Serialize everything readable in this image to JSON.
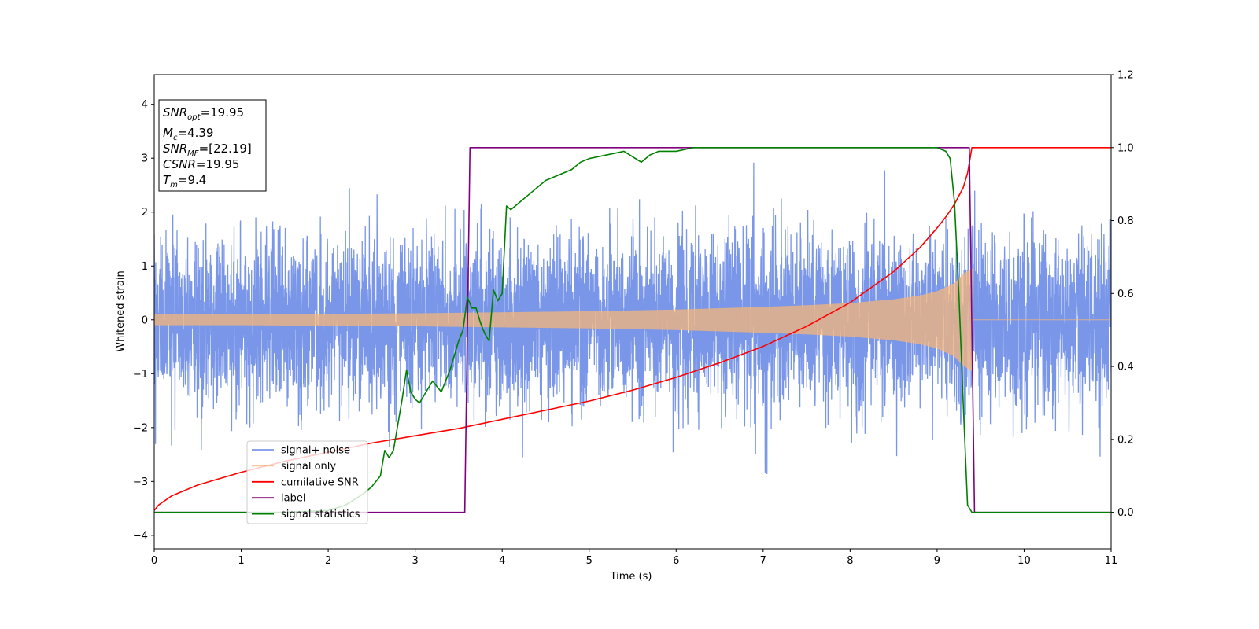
{
  "chart_data": {
    "type": "line",
    "xlabel": "Time (s)",
    "ylabel": "Whitened strain",
    "xlim": [
      0,
      11
    ],
    "ylim_left": [
      -4.25,
      4.55
    ],
    "ylim_right": [
      -0.1,
      1.2
    ],
    "x_ticks": [
      0,
      1,
      2,
      3,
      4,
      5,
      6,
      7,
      8,
      9,
      10,
      11
    ],
    "y_ticks_left": [
      -4,
      -3,
      -2,
      -1,
      0,
      1,
      2,
      3,
      4
    ],
    "y_ticks_right": [
      0.0,
      0.2,
      0.4,
      0.6,
      0.8,
      1.0,
      1.2
    ],
    "grid": false,
    "legend_position": "lower-left",
    "annotations": {
      "snr_opt": {
        "name": "SNR",
        "sub": "opt",
        "value": "=19.95"
      },
      "mc": {
        "name": "M",
        "sub": "c",
        "value": "=4.39"
      },
      "snr_mf": {
        "name": "SNR",
        "sub": "MF",
        "value": "=[22.19]"
      },
      "csnr": {
        "name": "CSNR",
        "sub": "",
        "value": "=19.95"
      },
      "tm": {
        "name": "T",
        "sub": "m",
        "value": "=9.4"
      }
    },
    "series": [
      {
        "name": "signal+ noise",
        "color": "#7996e8",
        "axis": "left",
        "kind": "noise",
        "noise_sigma": 1.05,
        "noise_clip": [
          -3.8,
          4.15
        ],
        "x_range": [
          0,
          11
        ]
      },
      {
        "name": "signal only",
        "color": "#f5b47a",
        "axis": "left",
        "kind": "chirp_envelope",
        "envelope": {
          "x": [
            0,
            1,
            2,
            3,
            4,
            5,
            6,
            7,
            7.5,
            8,
            8.5,
            8.8,
            9.0,
            9.2,
            9.3,
            9.4
          ],
          "y": [
            0.1,
            0.1,
            0.11,
            0.12,
            0.14,
            0.16,
            0.19,
            0.24,
            0.27,
            0.31,
            0.38,
            0.45,
            0.53,
            0.68,
            0.85,
            0.95
          ]
        },
        "after_merger_value": 0.0
      },
      {
        "name": "cumilative SNR",
        "color": "#ff0000",
        "axis": "right",
        "x": [
          0,
          0.05,
          0.2,
          0.5,
          1,
          1.5,
          2,
          2.5,
          3,
          3.5,
          4,
          4.5,
          5,
          5.5,
          6,
          6.5,
          7,
          7.5,
          8,
          8.5,
          8.8,
          9.0,
          9.1,
          9.2,
          9.3,
          9.35,
          9.4,
          9.5,
          10,
          11
        ],
        "y": [
          0.005,
          0.02,
          0.045,
          0.075,
          0.11,
          0.14,
          0.165,
          0.19,
          0.21,
          0.23,
          0.255,
          0.28,
          0.305,
          0.335,
          0.37,
          0.41,
          0.455,
          0.51,
          0.575,
          0.66,
          0.725,
          0.78,
          0.81,
          0.845,
          0.89,
          0.93,
          1.0,
          1.0,
          1.0,
          1.0
        ]
      },
      {
        "name": "label",
        "color": "#800080",
        "axis": "right",
        "x": [
          0,
          3.57,
          3.63,
          9.37,
          9.43,
          11
        ],
        "y": [
          0,
          0,
          1,
          1,
          0,
          0
        ]
      },
      {
        "name": "signal statistics",
        "color": "#008000",
        "axis": "right",
        "x": [
          0,
          1.0,
          1.5,
          2.0,
          2.2,
          2.4,
          2.5,
          2.6,
          2.65,
          2.7,
          2.75,
          2.8,
          2.85,
          2.9,
          2.95,
          3.0,
          3.05,
          3.1,
          3.2,
          3.3,
          3.4,
          3.5,
          3.55,
          3.6,
          3.65,
          3.7,
          3.75,
          3.8,
          3.85,
          3.9,
          3.95,
          4.0,
          4.05,
          4.1,
          4.15,
          4.2,
          4.3,
          4.4,
          4.5,
          4.6,
          4.7,
          4.8,
          4.9,
          5.0,
          5.2,
          5.4,
          5.6,
          5.7,
          5.8,
          6.0,
          6.2,
          6.5,
          7.0,
          7.5,
          8.0,
          8.5,
          9.0,
          9.1,
          9.15,
          9.2,
          9.25,
          9.3,
          9.35,
          9.4,
          9.5,
          10.0,
          11
        ],
        "y": [
          0,
          0,
          0,
          0.005,
          0.02,
          0.05,
          0.07,
          0.1,
          0.17,
          0.15,
          0.17,
          0.24,
          0.31,
          0.39,
          0.33,
          0.31,
          0.3,
          0.32,
          0.36,
          0.33,
          0.39,
          0.47,
          0.5,
          0.59,
          0.56,
          0.56,
          0.52,
          0.49,
          0.47,
          0.61,
          0.58,
          0.6,
          0.84,
          0.83,
          0.84,
          0.85,
          0.87,
          0.89,
          0.91,
          0.92,
          0.93,
          0.94,
          0.96,
          0.97,
          0.98,
          0.99,
          0.96,
          0.98,
          0.99,
          0.99,
          1.0,
          1.0,
          1.0,
          1.0,
          1.0,
          1.0,
          1.0,
          0.99,
          0.97,
          0.85,
          0.6,
          0.3,
          0.02,
          0.0,
          0.0,
          0.0,
          0.0
        ]
      }
    ]
  }
}
